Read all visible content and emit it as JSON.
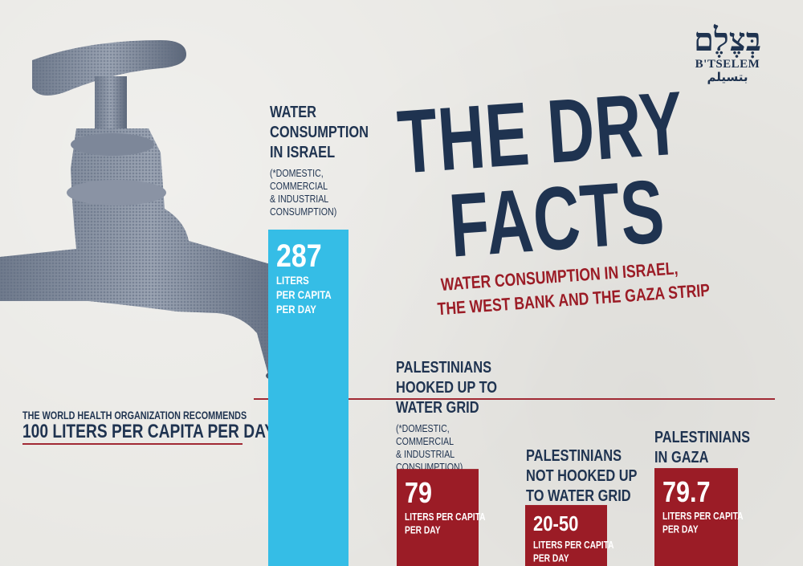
{
  "logo": {
    "hebrew": "בְּצֶלֶם",
    "latin": "B'TSELEM",
    "arabic": "بتسيلم"
  },
  "title": {
    "line1": "THE DRY",
    "line2": "FACTS",
    "subtitle_line1": "WATER CONSUMPTION IN ISRAEL,",
    "subtitle_line2": "THE WEST BANK AND THE GAZA STRIP"
  },
  "reference": {
    "line1": "THE WORLD HEALTH ORGANIZATION RECOMMENDS",
    "line2": "100 LITERS PER CAPITA PER DAY"
  },
  "colors": {
    "israel_bar": "#35bde6",
    "palestinian_bar": "#9b1c26",
    "title": "#1f3350",
    "subtitle": "#9b1c26",
    "reference_line": "#a12a34"
  },
  "chart_data": {
    "type": "bar",
    "categories": [
      "WATER CONSUMPTION IN ISRAEL",
      "PALESTINIANS HOOKED UP TO WATER GRID",
      "PALESTINIANS NOT HOOKED UP TO WATER GRID",
      "PALESTINIANS IN GAZA"
    ],
    "values": [
      287,
      79,
      35,
      79.7
    ],
    "value_labels": [
      "287",
      "79",
      "20-50",
      "79.7"
    ],
    "units": [
      "LITERS PER CAPITA PER DAY",
      "LITERS PER CAPITA PER DAY",
      "LITERS PER CAPITA PER DAY",
      "LITERS PER CAPITA PER DAY"
    ],
    "reference_line": 100,
    "ylabel": "",
    "xlabel": "",
    "title": "THE DRY FACTS"
  },
  "categories_text": {
    "israel": {
      "line1": "WATER",
      "line2": "CONSUMPTION",
      "line3": "IN ISRAEL",
      "note1": "(*DOMESTIC,",
      "note2": "COMMERCIAL",
      "note3": "& INDUSTRIAL",
      "note4": "CONSUMPTION)"
    },
    "grid": {
      "line1": "PALESTINIANS",
      "line2": "HOOKED UP TO",
      "line3": "WATER GRID",
      "note1": "(*DOMESTIC,",
      "note2": "COMMERCIAL",
      "note3": "& INDUSTRIAL",
      "note4": "CONSUMPTION)"
    },
    "nogrid": {
      "line1": "PALESTINIANS",
      "line2": "NOT HOOKED UP",
      "line3": "TO WATER GRID"
    },
    "gaza": {
      "line1": "PALESTINIANS",
      "line2": "IN GAZA"
    }
  },
  "bar_units": {
    "israel": {
      "line1": "LITERS",
      "line2": "PER CAPITA",
      "line3": "PER DAY"
    },
    "grid": {
      "line1": "LITERS PER CAPITA",
      "line2": "PER DAY"
    },
    "nogrid": {
      "line1": "LITERS PER CAPITA",
      "line2": "PER DAY"
    },
    "gaza": {
      "line1": "LITERS PER CAPITA",
      "line2": "PER DAY"
    }
  }
}
